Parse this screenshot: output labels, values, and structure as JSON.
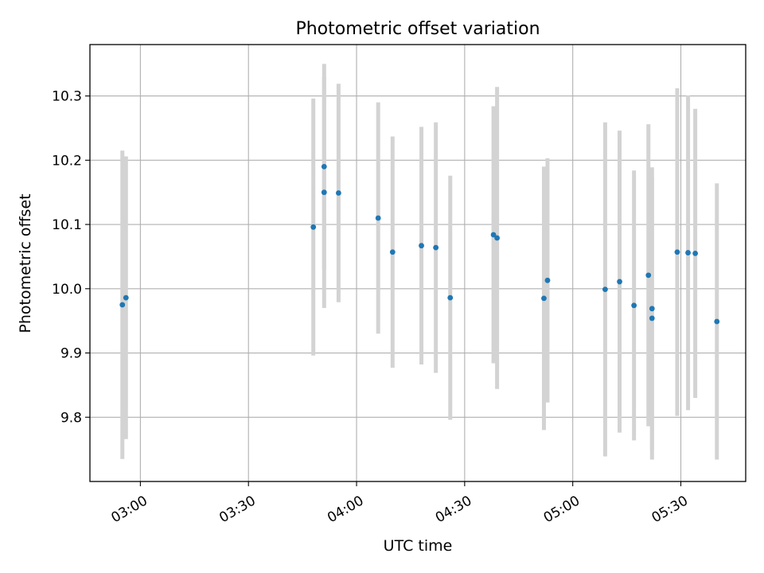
{
  "chart_data": {
    "type": "scatter",
    "title": "Photometric offset variation",
    "xlabel": "UTC time",
    "ylabel": "Photometric offset",
    "xlim": [
      "02:46",
      "05:48"
    ],
    "ylim": [
      9.7,
      10.38
    ],
    "xticks": [
      "03:00",
      "03:30",
      "04:00",
      "04:30",
      "05:00",
      "05:30"
    ],
    "yticks": [
      9.8,
      9.9,
      10.0,
      10.1,
      10.2,
      10.3
    ],
    "ytick_labels": [
      "9.8",
      "9.9",
      "10.0",
      "10.1",
      "10.2",
      "10.3"
    ],
    "grid": true,
    "point_color": "#1f77b4",
    "errorbar_color": "#d3d3d3",
    "points": [
      {
        "x": "02:55",
        "y": 9.975,
        "yerr": 0.24
      },
      {
        "x": "02:56",
        "y": 9.986,
        "yerr": 0.22
      },
      {
        "x": "03:48",
        "y": 10.096,
        "yerr": 0.2
      },
      {
        "x": "03:51",
        "y": 10.19,
        "yerr": 0.16
      },
      {
        "x": "03:51",
        "y": 10.15,
        "yerr": 0.18
      },
      {
        "x": "03:55",
        "y": 10.149,
        "yerr": 0.17
      },
      {
        "x": "04:06",
        "y": 10.11,
        "yerr": 0.18
      },
      {
        "x": "04:10",
        "y": 10.057,
        "yerr": 0.18
      },
      {
        "x": "04:18",
        "y": 10.067,
        "yerr": 0.185
      },
      {
        "x": "04:22",
        "y": 10.064,
        "yerr": 0.195
      },
      {
        "x": "04:26",
        "y": 9.986,
        "yerr": 0.19
      },
      {
        "x": "04:38",
        "y": 10.084,
        "yerr": 0.2
      },
      {
        "x": "04:39",
        "y": 10.079,
        "yerr": 0.235
      },
      {
        "x": "04:52",
        "y": 9.985,
        "yerr": 0.205
      },
      {
        "x": "04:53",
        "y": 10.013,
        "yerr": 0.19
      },
      {
        "x": "05:09",
        "y": 9.999,
        "yerr": 0.26
      },
      {
        "x": "05:13",
        "y": 10.011,
        "yerr": 0.235
      },
      {
        "x": "05:17",
        "y": 9.974,
        "yerr": 0.21
      },
      {
        "x": "05:21",
        "y": 10.021,
        "yerr": 0.235
      },
      {
        "x": "05:22",
        "y": 9.954,
        "yerr": 0.22
      },
      {
        "x": "05:22",
        "y": 9.969,
        "yerr": 0.22
      },
      {
        "x": "05:29",
        "y": 10.057,
        "yerr": 0.255
      },
      {
        "x": "05:32",
        "y": 10.056,
        "yerr": 0.245
      },
      {
        "x": "05:34",
        "y": 10.055,
        "yerr": 0.225
      },
      {
        "x": "05:40",
        "y": 9.949,
        "yerr": 0.215
      }
    ]
  }
}
